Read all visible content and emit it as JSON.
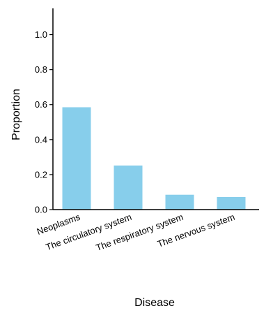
{
  "chart_data": {
    "type": "bar",
    "categories": [
      "Neoplasms",
      "The circulatory system",
      "The respiratory system",
      "The nervous system"
    ],
    "values": [
      0.585,
      0.252,
      0.085,
      0.072
    ],
    "title": "",
    "xlabel": "Disease",
    "ylabel": "Proportion",
    "ylim": [
      0,
      1.15
    ],
    "yticks": [
      "0.0",
      "0.2",
      "0.4",
      "0.6",
      "0.8",
      "1.0"
    ],
    "bar_color": "#87CEEB",
    "grid": false,
    "legend": "none"
  }
}
